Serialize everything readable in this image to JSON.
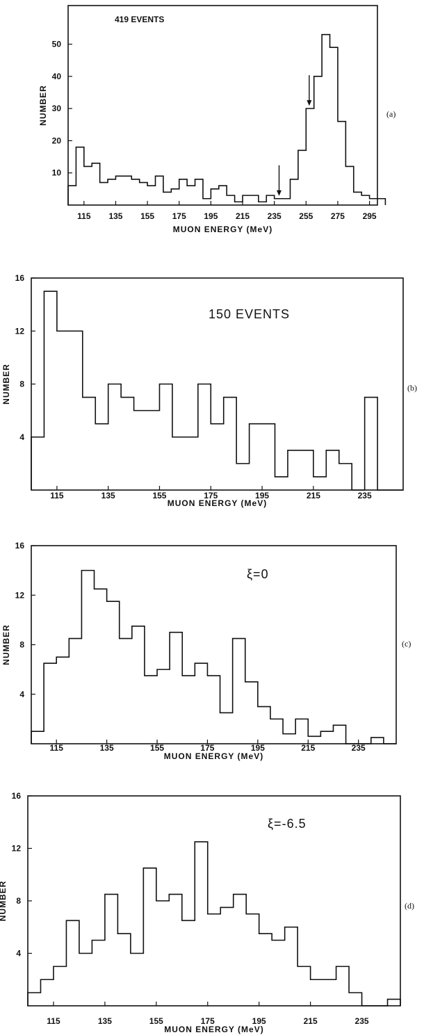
{
  "chart_data": [
    {
      "type": "bar",
      "panel_label": "(a)",
      "annotation": "419 EVENTS",
      "xlabel": "MUON ENERGY (MeV)",
      "ylabel": "NUMBER",
      "xlim": [
        105,
        300
      ],
      "ylim": [
        0,
        62
      ],
      "x_ticks": [
        115,
        135,
        155,
        175,
        195,
        215,
        235,
        255,
        275,
        295
      ],
      "y_ticks": [
        10,
        20,
        30,
        40,
        50
      ],
      "bin_width": 5,
      "bin_start": 105,
      "values": [
        6,
        18,
        12,
        13,
        7,
        8,
        9,
        9,
        8,
        7,
        6,
        9,
        4,
        5,
        8,
        6,
        8,
        2,
        5,
        6,
        3,
        1,
        3,
        3,
        1,
        3,
        2,
        2,
        8,
        17,
        30,
        40,
        53,
        49,
        26,
        12,
        4,
        3,
        2,
        2
      ],
      "arrows_at": [
        238,
        257
      ]
    },
    {
      "type": "bar",
      "panel_label": "(b)",
      "annotation": "150 EVENTS",
      "xlabel": "MUON ENERGY (MeV)",
      "ylabel": "NUMBER",
      "xlim": [
        105,
        250
      ],
      "ylim": [
        0,
        16
      ],
      "x_ticks": [
        115,
        135,
        155,
        175,
        195,
        215,
        235
      ],
      "y_ticks": [
        4,
        8,
        12,
        16
      ],
      "bin_width": 5,
      "bin_start": 105,
      "values": [
        4,
        15,
        12,
        12,
        7,
        5,
        8,
        7,
        6,
        6,
        8,
        4,
        4,
        8,
        5,
        7,
        2,
        5,
        5,
        1,
        3,
        3,
        1,
        3,
        2,
        0,
        7,
        0,
        0
      ]
    },
    {
      "type": "bar",
      "panel_label": "(c)",
      "annotation": "ξ=0",
      "xlabel": "MUON ENERGY (MeV)",
      "ylabel": "NUMBER",
      "xlim": [
        105,
        250
      ],
      "ylim": [
        0,
        16
      ],
      "x_ticks": [
        115,
        135,
        155,
        175,
        195,
        215,
        235
      ],
      "y_ticks": [
        4,
        8,
        12,
        16
      ],
      "bin_width": 5,
      "bin_start": 105,
      "values": [
        1,
        6.5,
        7,
        8.5,
        14,
        12.5,
        11.5,
        8.5,
        9.5,
        5.5,
        6,
        9,
        5.5,
        6.5,
        5.5,
        2.5,
        8.5,
        5,
        3,
        2,
        0.8,
        2,
        0.6,
        1,
        1.5,
        0,
        0,
        0.5,
        0
      ]
    },
    {
      "type": "bar",
      "panel_label": "(d)",
      "annotation": "ξ=-6.5",
      "xlabel": "MUON ENERGY (MeV)",
      "ylabel": "NUMBER",
      "xlim": [
        105,
        250
      ],
      "ylim": [
        0,
        16
      ],
      "x_ticks": [
        115,
        135,
        155,
        175,
        195,
        215,
        235
      ],
      "y_ticks": [
        4,
        8,
        12,
        16
      ],
      "bin_width": 5,
      "bin_start": 105,
      "values": [
        1,
        2,
        3,
        6.5,
        4,
        5,
        8.5,
        5.5,
        4,
        10.5,
        8,
        8.5,
        6.5,
        12.5,
        7,
        7.5,
        8.5,
        7,
        5.5,
        5,
        6,
        3,
        2,
        2,
        3,
        1,
        0,
        0,
        0.5
      ]
    }
  ]
}
